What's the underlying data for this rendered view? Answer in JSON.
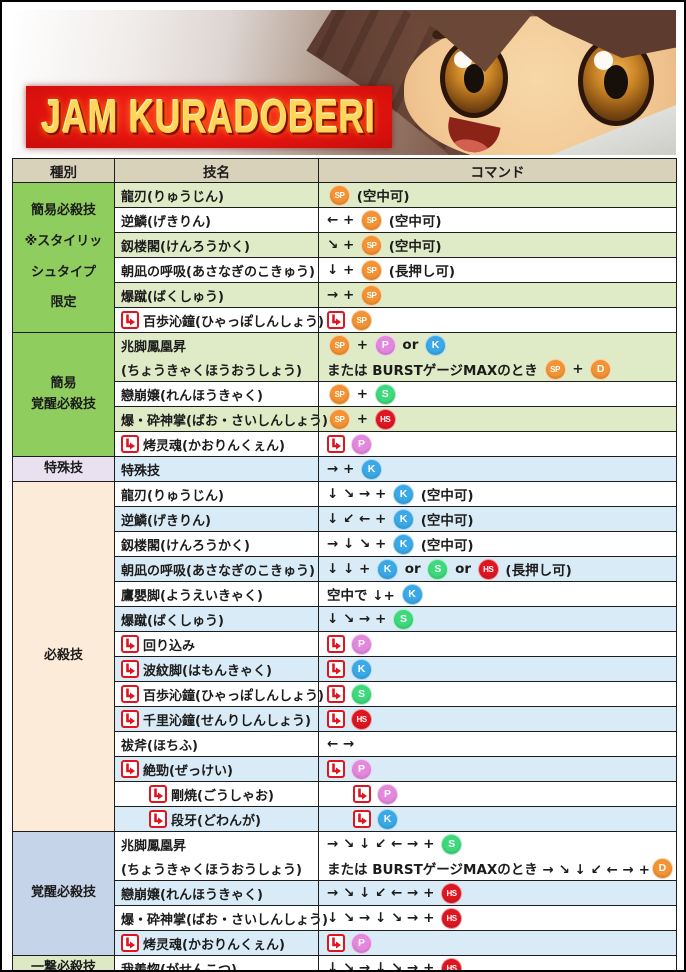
{
  "banner": {
    "title": "JAM KURADOBERI"
  },
  "buttons": {
    "SP": {
      "bg": "#f39334",
      "small": true
    },
    "P": {
      "bg": "#e289dd",
      "small": false
    },
    "K": {
      "bg": "#3aa9e6",
      "small": false
    },
    "S": {
      "bg": "#3fd97d",
      "small": false
    },
    "HS": {
      "bg": "#de1622",
      "small": true
    },
    "D": {
      "bg": "#f39334",
      "small": false
    }
  },
  "followup_color": "#dd1622",
  "table": {
    "headers": [
      "種別",
      "技名",
      "コマンド"
    ],
    "header_bg": "#d9d2bb",
    "sections": [
      {
        "label_lines": [
          "簡易必殺技",
          "※スタイリッ",
          "シュタイプ",
          "限定"
        ],
        "label_bg": "#8fce5e",
        "tint": "#dfeac6",
        "tall": true,
        "rows": [
          {
            "shade": "tint",
            "name_lines": [
              [
                {
                  "t": "text",
                  "v": "龍刃(りゅうじん)"
                }
              ]
            ],
            "cmd_lines": [
              [
                {
                  "t": "btn",
                  "v": "SP"
                },
                {
                  "t": "text",
                  "v": " (空中可)"
                }
              ]
            ]
          },
          {
            "shade": "white",
            "name_lines": [
              [
                {
                  "t": "text",
                  "v": "逆鱗(げきりん)"
                }
              ]
            ],
            "cmd_lines": [
              [
                {
                  "t": "text",
                  "v": "← + "
                },
                {
                  "t": "btn",
                  "v": "SP"
                },
                {
                  "t": "text",
                  "v": " (空中可)"
                }
              ]
            ]
          },
          {
            "shade": "tint",
            "name_lines": [
              [
                {
                  "t": "text",
                  "v": "釼楼閣(けんろうかく)"
                }
              ]
            ],
            "cmd_lines": [
              [
                {
                  "t": "text",
                  "v": "↘ + "
                },
                {
                  "t": "btn",
                  "v": "SP"
                },
                {
                  "t": "text",
                  "v": " (空中可)"
                }
              ]
            ]
          },
          {
            "shade": "white",
            "name_lines": [
              [
                {
                  "t": "text",
                  "v": "朝凪の呼吸(あさなぎのこきゅう)"
                }
              ]
            ],
            "cmd_lines": [
              [
                {
                  "t": "text",
                  "v": "↓ + "
                },
                {
                  "t": "btn",
                  "v": "SP"
                },
                {
                  "t": "text",
                  "v": " (長押し可)"
                }
              ]
            ]
          },
          {
            "shade": "tint",
            "name_lines": [
              [
                {
                  "t": "text",
                  "v": "爆蹴(ばくしゅう)"
                }
              ]
            ],
            "cmd_lines": [
              [
                {
                  "t": "text",
                  "v": "→ + "
                },
                {
                  "t": "btn",
                  "v": "SP"
                }
              ]
            ]
          },
          {
            "shade": "white",
            "name_lines": [
              [
                {
                  "t": "fu"
                },
                {
                  "t": "text",
                  "v": "百歩沁鐘(ひゃっぽしんしょう)"
                }
              ]
            ],
            "cmd_lines": [
              [
                {
                  "t": "fu"
                },
                {
                  "t": "btn",
                  "v": "SP"
                }
              ]
            ]
          }
        ]
      },
      {
        "label_lines": [
          "簡易",
          "覚醒必殺技"
        ],
        "label_bg": "#8fce5e",
        "tint": "#dfeac6",
        "tall": false,
        "rows": [
          {
            "shade": "tint",
            "name_lines": [
              [
                {
                  "t": "text",
                  "v": "兆脚鳳凰昇"
                }
              ],
              [
                {
                  "t": "text",
                  "v": "(ちょうきゃくほうおうしょう)"
                }
              ]
            ],
            "cmd_lines": [
              [
                {
                  "t": "btn",
                  "v": "SP"
                },
                {
                  "t": "text",
                  "v": " + "
                },
                {
                  "t": "btn",
                  "v": "P"
                },
                {
                  "t": "text",
                  "v": " or "
                },
                {
                  "t": "btn",
                  "v": "K"
                }
              ],
              [
                {
                  "t": "text",
                  "v": "または BURSTゲージMAXのとき "
                },
                {
                  "t": "btn",
                  "v": "SP"
                },
                {
                  "t": "text",
                  "v": " + "
                },
                {
                  "t": "btn",
                  "v": "D"
                }
              ]
            ]
          },
          {
            "shade": "white",
            "name_lines": [
              [
                {
                  "t": "text",
                  "v": "戀崩嬢(れんほうきゃく)"
                }
              ]
            ],
            "cmd_lines": [
              [
                {
                  "t": "btn",
                  "v": "SP"
                },
                {
                  "t": "text",
                  "v": " + "
                },
                {
                  "t": "btn",
                  "v": "S"
                }
              ]
            ]
          },
          {
            "shade": "tint",
            "name_lines": [
              [
                {
                  "t": "text",
                  "v": "爆・砕神掌(ばお・さいしんしょう)"
                }
              ]
            ],
            "cmd_lines": [
              [
                {
                  "t": "btn",
                  "v": "SP"
                },
                {
                  "t": "text",
                  "v": " + "
                },
                {
                  "t": "btn",
                  "v": "HS"
                }
              ]
            ]
          },
          {
            "shade": "white",
            "name_lines": [
              [
                {
                  "t": "fu"
                },
                {
                  "t": "text",
                  "v": "烤灵魂(かおりんくぇん)"
                }
              ]
            ],
            "cmd_lines": [
              [
                {
                  "t": "fu"
                },
                {
                  "t": "btn",
                  "v": "P"
                }
              ]
            ]
          }
        ]
      },
      {
        "label_lines": [
          "特殊技"
        ],
        "label_bg": "#e9e1ef",
        "tint": "#d9ebf6",
        "tall": false,
        "rows": [
          {
            "shade": "tint",
            "name_lines": [
              [
                {
                  "t": "text",
                  "v": "特殊技"
                }
              ]
            ],
            "cmd_lines": [
              [
                {
                  "t": "text",
                  "v": "→ + "
                },
                {
                  "t": "btn",
                  "v": "K"
                }
              ]
            ]
          }
        ]
      },
      {
        "label_lines": [
          "必殺技"
        ],
        "label_bg": "#fdebd9",
        "tint": "#d9ebf6",
        "tall": false,
        "rows": [
          {
            "shade": "white",
            "name_lines": [
              [
                {
                  "t": "text",
                  "v": "龍刃(りゅうじん)"
                }
              ]
            ],
            "cmd_lines": [
              [
                {
                  "t": "text",
                  "v": "↓ ↘ → + "
                },
                {
                  "t": "btn",
                  "v": "K"
                },
                {
                  "t": "text",
                  "v": " (空中可)"
                }
              ]
            ]
          },
          {
            "shade": "tint",
            "name_lines": [
              [
                {
                  "t": "text",
                  "v": "逆鱗(げきりん)"
                }
              ]
            ],
            "cmd_lines": [
              [
                {
                  "t": "text",
                  "v": "↓ ↙ ← + "
                },
                {
                  "t": "btn",
                  "v": "K"
                },
                {
                  "t": "text",
                  "v": " (空中可)"
                }
              ]
            ]
          },
          {
            "shade": "white",
            "name_lines": [
              [
                {
                  "t": "text",
                  "v": "釼楼閣(けんろうかく)"
                }
              ]
            ],
            "cmd_lines": [
              [
                {
                  "t": "text",
                  "v": "→ ↓ ↘ + "
                },
                {
                  "t": "btn",
                  "v": "K"
                },
                {
                  "t": "text",
                  "v": " (空中可)"
                }
              ]
            ]
          },
          {
            "shade": "tint",
            "name_lines": [
              [
                {
                  "t": "text",
                  "v": "朝凪の呼吸(あさなぎのこきゅう)"
                }
              ]
            ],
            "cmd_lines": [
              [
                {
                  "t": "text",
                  "v": "↓ ↓ + "
                },
                {
                  "t": "btn",
                  "v": "K"
                },
                {
                  "t": "text",
                  "v": " or "
                },
                {
                  "t": "btn",
                  "v": "S"
                },
                {
                  "t": "text",
                  "v": " or "
                },
                {
                  "t": "btn",
                  "v": "HS"
                },
                {
                  "t": "text",
                  "v": " (長押し可)"
                }
              ]
            ]
          },
          {
            "shade": "white",
            "name_lines": [
              [
                {
                  "t": "text",
                  "v": "鷹嬰脚(ようえいきゃく)"
                }
              ]
            ],
            "cmd_lines": [
              [
                {
                  "t": "text",
                  "v": "空中で ↓+ "
                },
                {
                  "t": "btn",
                  "v": "K"
                }
              ]
            ]
          },
          {
            "shade": "tint",
            "name_lines": [
              [
                {
                  "t": "text",
                  "v": "爆蹴(ばくしゅう)"
                }
              ]
            ],
            "cmd_lines": [
              [
                {
                  "t": "text",
                  "v": "↓ ↘ → + "
                },
                {
                  "t": "btn",
                  "v": "S"
                }
              ]
            ]
          },
          {
            "shade": "white",
            "name_lines": [
              [
                {
                  "t": "fu"
                },
                {
                  "t": "text",
                  "v": "回り込み"
                }
              ]
            ],
            "cmd_lines": [
              [
                {
                  "t": "fu"
                },
                {
                  "t": "btn",
                  "v": "P"
                }
              ]
            ]
          },
          {
            "shade": "tint",
            "name_lines": [
              [
                {
                  "t": "fu"
                },
                {
                  "t": "text",
                  "v": "波紋脚(はもんきゃく)"
                }
              ]
            ],
            "cmd_lines": [
              [
                {
                  "t": "fu"
                },
                {
                  "t": "btn",
                  "v": "K"
                }
              ]
            ]
          },
          {
            "shade": "white",
            "name_lines": [
              [
                {
                  "t": "fu"
                },
                {
                  "t": "text",
                  "v": "百歩沁鐘(ひゃっぽしんしょう)"
                }
              ]
            ],
            "cmd_lines": [
              [
                {
                  "t": "fu"
                },
                {
                  "t": "btn",
                  "v": "S"
                }
              ]
            ]
          },
          {
            "shade": "tint",
            "name_lines": [
              [
                {
                  "t": "fu"
                },
                {
                  "t": "text",
                  "v": "千里沁鐘(せんりしんしょう)"
                }
              ]
            ],
            "cmd_lines": [
              [
                {
                  "t": "fu"
                },
                {
                  "t": "btn",
                  "v": "HS"
                }
              ]
            ]
          },
          {
            "shade": "white",
            "name_lines": [
              [
                {
                  "t": "text",
                  "v": "祓斧(ほちふ)"
                }
              ]
            ],
            "cmd_lines": [
              [
                {
                  "t": "text",
                  "v": "← →"
                }
              ]
            ]
          },
          {
            "shade": "tint",
            "name_lines": [
              [
                {
                  "t": "fu"
                },
                {
                  "t": "text",
                  "v": "絶勁(ぜっけい)"
                }
              ]
            ],
            "cmd_lines": [
              [
                {
                  "t": "fu"
                },
                {
                  "t": "btn",
                  "v": "P"
                }
              ]
            ]
          },
          {
            "shade": "white",
            "indent": 1,
            "name_lines": [
              [
                {
                  "t": "fu"
                },
                {
                  "t": "text",
                  "v": "剛焼(ごうしゃお)"
                }
              ]
            ],
            "cmd_lines": [
              [
                {
                  "t": "fu"
                },
                {
                  "t": "btn",
                  "v": "P"
                }
              ]
            ]
          },
          {
            "shade": "tint",
            "indent": 1,
            "name_lines": [
              [
                {
                  "t": "fu"
                },
                {
                  "t": "text",
                  "v": "段牙(どわんが)"
                }
              ]
            ],
            "cmd_lines": [
              [
                {
                  "t": "fu"
                },
                {
                  "t": "btn",
                  "v": "K"
                }
              ]
            ]
          }
        ]
      },
      {
        "label_lines": [
          "覚醒必殺技"
        ],
        "label_bg": "#c6d4e9",
        "tint": "#d9ebf6",
        "tall": false,
        "rows": [
          {
            "shade": "white",
            "name_lines": [
              [
                {
                  "t": "text",
                  "v": "兆脚鳳凰昇"
                }
              ],
              [
                {
                  "t": "text",
                  "v": "(ちょうきゃくほうおうしょう)"
                }
              ]
            ],
            "cmd_lines": [
              [
                {
                  "t": "text",
                  "v": "→ ↘ ↓ ↙ ← → + "
                },
                {
                  "t": "btn",
                  "v": "S"
                }
              ],
              [
                {
                  "t": "text",
                  "v": "または BURSTゲージMAXのとき → ↘ ↓ ↙ ← → +"
                },
                {
                  "t": "btn",
                  "v": "D"
                }
              ]
            ]
          },
          {
            "shade": "tint",
            "name_lines": [
              [
                {
                  "t": "text",
                  "v": "戀崩嬢(れんほうきゃく)"
                }
              ]
            ],
            "cmd_lines": [
              [
                {
                  "t": "text",
                  "v": "→ ↘ ↓ ↙ ← → + "
                },
                {
                  "t": "btn",
                  "v": "HS"
                }
              ]
            ]
          },
          {
            "shade": "white",
            "name_lines": [
              [
                {
                  "t": "text",
                  "v": "爆・砕神掌(ばお・さいしんしょう)"
                }
              ]
            ],
            "cmd_lines": [
              [
                {
                  "t": "text",
                  "v": "↓ ↘ → ↓ ↘ → + "
                },
                {
                  "t": "btn",
                  "v": "HS"
                }
              ]
            ]
          },
          {
            "shade": "tint",
            "name_lines": [
              [
                {
                  "t": "fu"
                },
                {
                  "t": "text",
                  "v": "烤灵魂(かおりんくぇん)"
                }
              ]
            ],
            "cmd_lines": [
              [
                {
                  "t": "fu"
                },
                {
                  "t": "btn",
                  "v": "P"
                }
              ]
            ]
          }
        ]
      },
      {
        "label_lines": [
          "一撃必殺技"
        ],
        "label_bg": "#dde9c5",
        "tint": "#d9ebf6",
        "tall": false,
        "rows": [
          {
            "shade": "white",
            "name_lines": [
              [
                {
                  "t": "text",
                  "v": "我羨惚(がせんこつ)"
                }
              ]
            ],
            "cmd_lines": [
              [
                {
                  "t": "text",
                  "v": "↓ ↘ → ↓ ↘ → + "
                },
                {
                  "t": "btn",
                  "v": "HS"
                }
              ]
            ]
          }
        ]
      }
    ]
  }
}
